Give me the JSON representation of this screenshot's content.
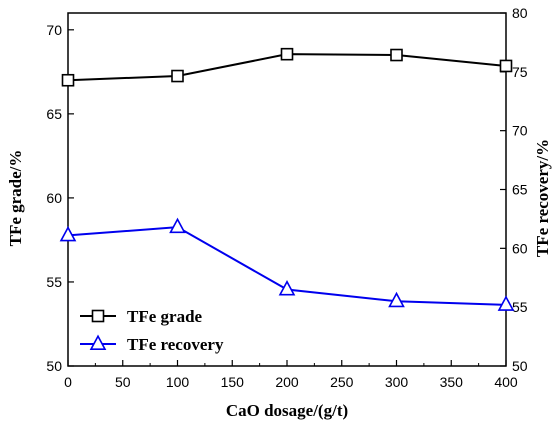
{
  "chart_data": {
    "type": "line",
    "xlabel": "CaO  dosage/(g/t)",
    "ylabel_left": "TFe grade/%",
    "ylabel_right": "TFe recovery/%",
    "xlim": [
      0,
      400
    ],
    "ylim_left": [
      50,
      71
    ],
    "ylim_right": [
      50,
      80
    ],
    "xticks": [
      0,
      50,
      100,
      150,
      200,
      250,
      300,
      350,
      400
    ],
    "yticks_left": [
      50,
      55,
      60,
      65,
      70
    ],
    "yticks_right": [
      50,
      55,
      60,
      65,
      70,
      75,
      80
    ],
    "x": [
      0,
      100,
      200,
      300,
      400
    ],
    "series": [
      {
        "name": "TFe grade",
        "axis": "left",
        "color": "#000000",
        "marker": "square",
        "values": [
          67.0,
          67.25,
          68.55,
          68.5,
          67.85
        ]
      },
      {
        "name": "TFe recovery",
        "axis": "right",
        "color": "#0000ee",
        "marker": "triangle",
        "values": [
          61.1,
          61.8,
          56.5,
          55.5,
          55.2
        ]
      }
    ],
    "legend_position": "bottom-left",
    "grid": false
  }
}
